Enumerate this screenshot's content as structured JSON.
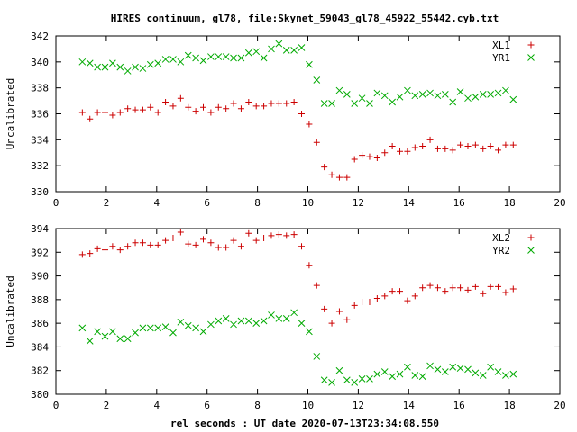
{
  "title": "HIRES continuum, gl78, file:Skynet_59043_gl78_45922_55442.cyb.txt",
  "xlabel": "rel seconds : UT date 2020-07-13T23:34:08.550",
  "chart_data": [
    {
      "type": "scatter",
      "ylabel": "Uncalibrated",
      "xlim": [
        0,
        20
      ],
      "ylim": [
        330,
        342
      ],
      "xticks": [
        0,
        2,
        4,
        6,
        8,
        10,
        12,
        14,
        16,
        18,
        20
      ],
      "yticks": [
        330,
        332,
        334,
        336,
        338,
        340,
        342
      ],
      "legend_position": "top-right",
      "series": [
        {
          "name": "XL1",
          "marker": "plus",
          "color": "#cc0000",
          "x": [
            1.05,
            1.35,
            1.65,
            1.95,
            2.25,
            2.55,
            2.85,
            3.15,
            3.45,
            3.75,
            4.05,
            4.35,
            4.65,
            4.95,
            5.25,
            5.55,
            5.85,
            6.15,
            6.45,
            6.75,
            7.05,
            7.35,
            7.65,
            7.95,
            8.25,
            8.55,
            8.85,
            9.15,
            9.45,
            9.75,
            10.05,
            10.35,
            10.65,
            10.95,
            11.25,
            11.55,
            11.85,
            12.15,
            12.45,
            12.75,
            13.05,
            13.35,
            13.65,
            13.95,
            14.25,
            14.55,
            14.85,
            15.15,
            15.45,
            15.75,
            16.05,
            16.35,
            16.65,
            16.95,
            17.25,
            17.55,
            17.85,
            18.15
          ],
          "y": [
            336.1,
            335.6,
            336.1,
            336.1,
            335.9,
            336.1,
            336.4,
            336.3,
            336.3,
            336.5,
            336.1,
            336.9,
            336.6,
            337.2,
            336.5,
            336.2,
            336.5,
            336.1,
            336.5,
            336.4,
            336.8,
            336.4,
            336.9,
            336.6,
            336.6,
            336.8,
            336.8,
            336.8,
            336.9,
            336.0,
            335.2,
            333.8,
            331.9,
            331.3,
            331.1,
            331.1,
            332.5,
            332.8,
            332.7,
            332.6,
            333.0,
            333.5,
            333.1,
            333.1,
            333.4,
            333.5,
            334.0,
            333.3,
            333.3,
            333.2,
            333.6,
            333.5,
            333.6,
            333.3,
            333.5,
            333.2,
            333.6,
            333.6
          ]
        },
        {
          "name": "YR1",
          "marker": "cross",
          "color": "#00aa00",
          "x": [
            1.05,
            1.35,
            1.65,
            1.95,
            2.25,
            2.55,
            2.85,
            3.15,
            3.45,
            3.75,
            4.05,
            4.35,
            4.65,
            4.95,
            5.25,
            5.55,
            5.85,
            6.15,
            6.45,
            6.75,
            7.05,
            7.35,
            7.65,
            7.95,
            8.25,
            8.55,
            8.85,
            9.15,
            9.45,
            9.75,
            10.05,
            10.35,
            10.65,
            10.95,
            11.25,
            11.55,
            11.85,
            12.15,
            12.45,
            12.75,
            13.05,
            13.35,
            13.65,
            13.95,
            14.25,
            14.55,
            14.85,
            15.15,
            15.45,
            15.75,
            16.05,
            16.35,
            16.65,
            16.95,
            17.25,
            17.55,
            17.85,
            18.15
          ],
          "y": [
            340.0,
            339.9,
            339.6,
            339.6,
            339.9,
            339.6,
            339.3,
            339.6,
            339.5,
            339.8,
            339.9,
            340.2,
            340.2,
            340.0,
            340.5,
            340.3,
            340.1,
            340.4,
            340.4,
            340.4,
            340.3,
            340.3,
            340.7,
            340.8,
            340.3,
            341.0,
            341.4,
            340.9,
            340.9,
            341.1,
            339.8,
            338.6,
            336.8,
            336.8,
            337.8,
            337.5,
            336.8,
            337.2,
            336.8,
            337.6,
            337.4,
            336.9,
            337.3,
            337.8,
            337.4,
            337.5,
            337.6,
            337.4,
            337.5,
            336.9,
            337.7,
            337.2,
            337.3,
            337.5,
            337.5,
            337.6,
            337.8,
            337.1
          ]
        }
      ]
    },
    {
      "type": "scatter",
      "ylabel": "Uncalibrated",
      "xlim": [
        0,
        20
      ],
      "ylim": [
        380,
        394
      ],
      "xticks": [
        0,
        2,
        4,
        6,
        8,
        10,
        12,
        14,
        16,
        18,
        20
      ],
      "yticks": [
        380,
        382,
        384,
        386,
        388,
        390,
        392,
        394
      ],
      "legend_position": "top-right",
      "series": [
        {
          "name": "XL2",
          "marker": "plus",
          "color": "#cc0000",
          "x": [
            1.05,
            1.35,
            1.65,
            1.95,
            2.25,
            2.55,
            2.85,
            3.15,
            3.45,
            3.75,
            4.05,
            4.35,
            4.65,
            4.95,
            5.25,
            5.55,
            5.85,
            6.15,
            6.45,
            6.75,
            7.05,
            7.35,
            7.65,
            7.95,
            8.25,
            8.55,
            8.85,
            9.15,
            9.45,
            9.75,
            10.05,
            10.35,
            10.65,
            10.95,
            11.25,
            11.55,
            11.85,
            12.15,
            12.45,
            12.75,
            13.05,
            13.35,
            13.65,
            13.95,
            14.25,
            14.55,
            14.85,
            15.15,
            15.45,
            15.75,
            16.05,
            16.35,
            16.65,
            16.95,
            17.25,
            17.55,
            17.85,
            18.15
          ],
          "y": [
            391.8,
            391.9,
            392.3,
            392.2,
            392.5,
            392.2,
            392.5,
            392.8,
            392.8,
            392.6,
            392.6,
            393.0,
            393.2,
            393.7,
            392.7,
            392.6,
            393.1,
            392.8,
            392.4,
            392.4,
            393.0,
            392.5,
            393.6,
            393.0,
            393.2,
            393.4,
            393.5,
            393.4,
            393.5,
            392.5,
            390.9,
            389.2,
            387.2,
            386.0,
            387.0,
            386.3,
            387.5,
            387.8,
            387.8,
            388.1,
            388.3,
            388.7,
            388.7,
            387.9,
            388.3,
            389.0,
            389.2,
            389.0,
            388.7,
            389.0,
            389.0,
            388.8,
            389.1,
            388.5,
            389.1,
            389.1,
            388.6,
            388.9
          ]
        },
        {
          "name": "YR2",
          "marker": "cross",
          "color": "#00aa00",
          "x": [
            1.05,
            1.35,
            1.65,
            1.95,
            2.25,
            2.55,
            2.85,
            3.15,
            3.45,
            3.75,
            4.05,
            4.35,
            4.65,
            4.95,
            5.25,
            5.55,
            5.85,
            6.15,
            6.45,
            6.75,
            7.05,
            7.35,
            7.65,
            7.95,
            8.25,
            8.55,
            8.85,
            9.15,
            9.45,
            9.75,
            10.05,
            10.35,
            10.65,
            10.95,
            11.25,
            11.55,
            11.85,
            12.15,
            12.45,
            12.75,
            13.05,
            13.35,
            13.65,
            13.95,
            14.25,
            14.55,
            14.85,
            15.15,
            15.45,
            15.75,
            16.05,
            16.35,
            16.65,
            16.95,
            17.25,
            17.55,
            17.85,
            18.15
          ],
          "y": [
            385.6,
            384.5,
            385.3,
            384.9,
            385.3,
            384.7,
            384.7,
            385.2,
            385.6,
            385.6,
            385.6,
            385.7,
            385.2,
            386.1,
            385.8,
            385.6,
            385.3,
            385.9,
            386.2,
            386.4,
            385.9,
            386.2,
            386.2,
            386.0,
            386.2,
            386.7,
            386.4,
            386.4,
            386.9,
            386.0,
            385.3,
            383.2,
            381.2,
            381.0,
            382.0,
            381.2,
            381.0,
            381.3,
            381.3,
            381.7,
            381.9,
            381.5,
            381.7,
            382.3,
            381.6,
            381.5,
            382.4,
            382.1,
            381.9,
            382.3,
            382.2,
            382.1,
            381.8,
            381.6,
            382.3,
            381.9,
            381.6,
            381.7
          ]
        }
      ]
    }
  ]
}
